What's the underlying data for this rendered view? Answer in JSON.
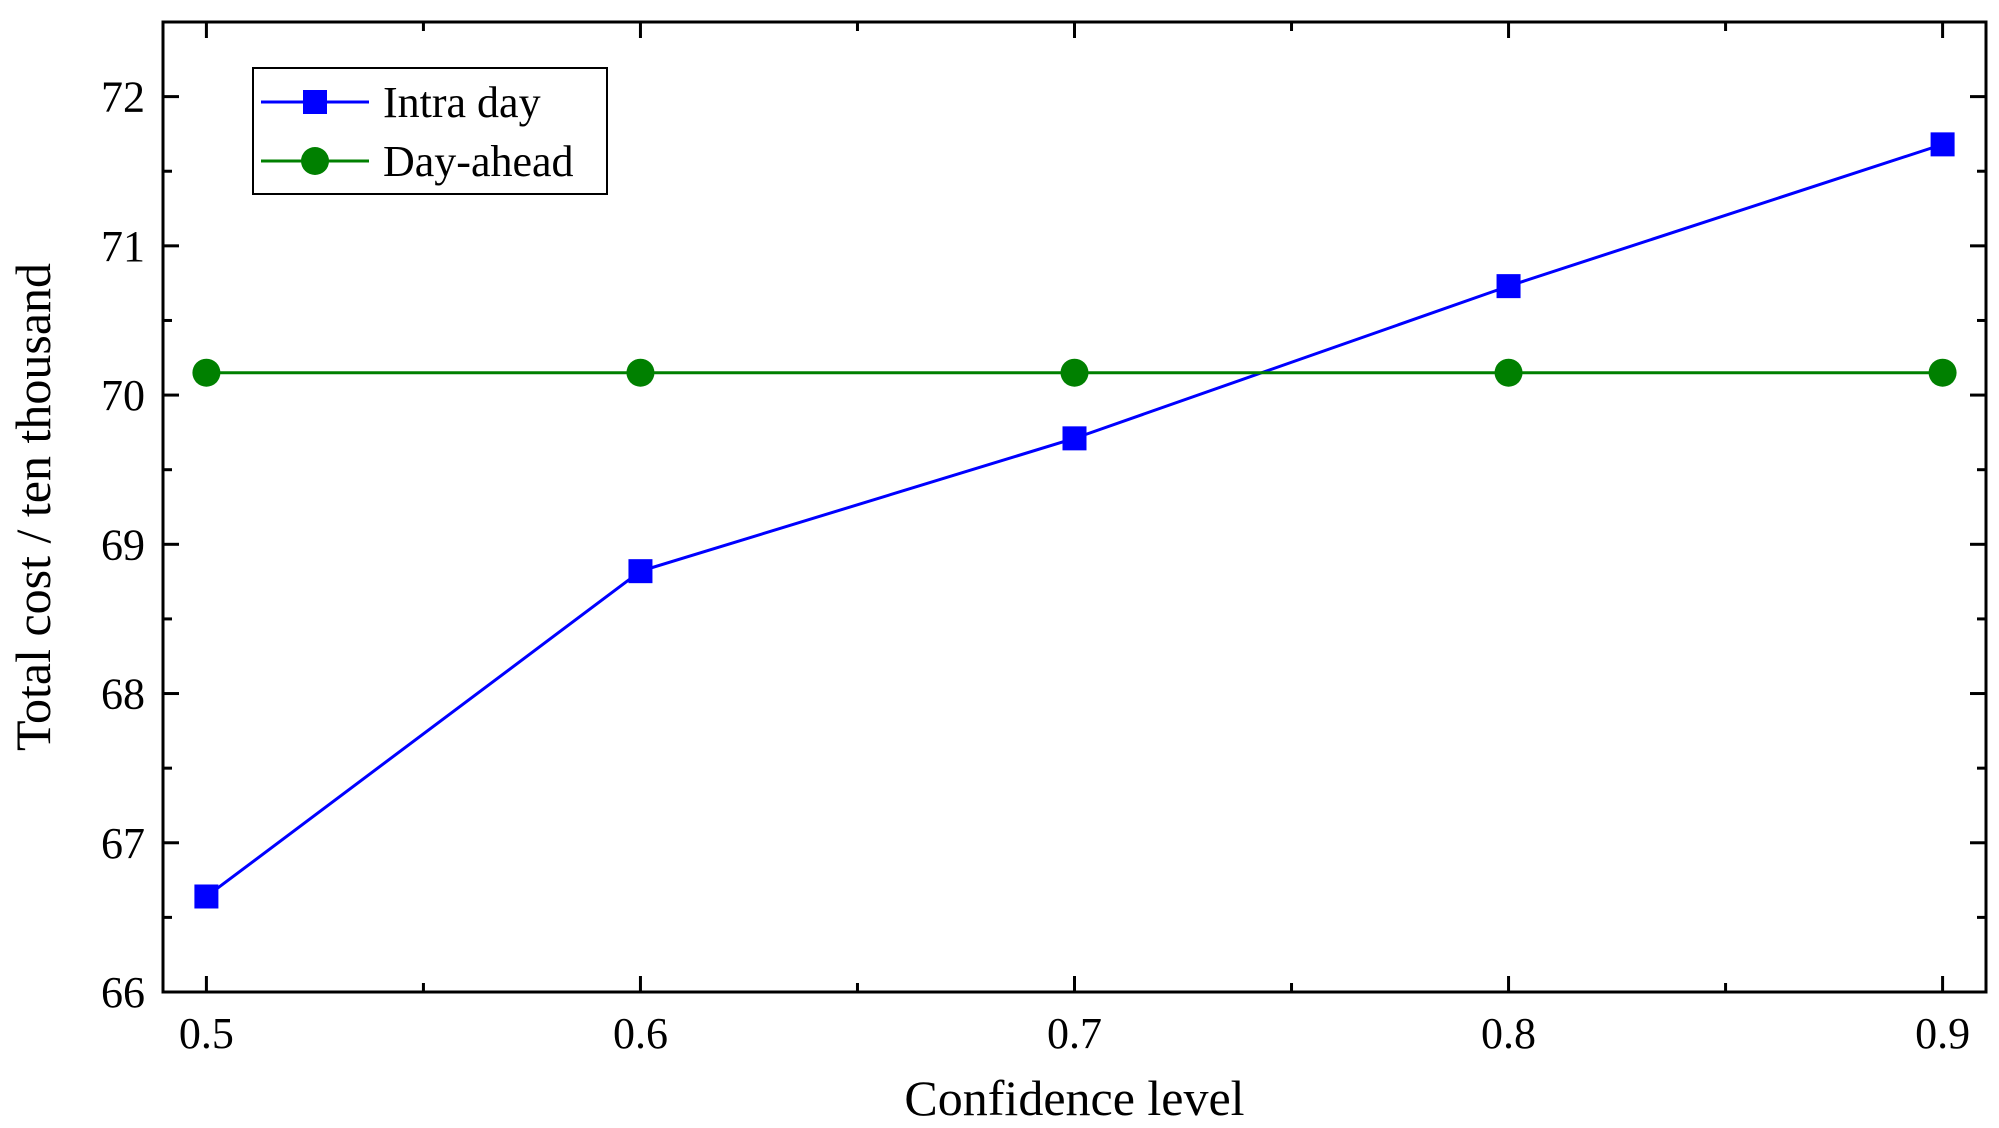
{
  "chart_data": {
    "type": "line",
    "title": "",
    "xlabel": "Confidence level",
    "ylabel": "Total cost / ten thousand",
    "x": [
      0.5,
      0.6,
      0.7,
      0.8,
      0.9
    ],
    "x_tick_labels": [
      "0.5",
      "0.6",
      "0.7",
      "0.8",
      "0.9"
    ],
    "y_tick_values": [
      66,
      67,
      68,
      69,
      70,
      71,
      72
    ],
    "y_tick_labels": [
      "66",
      "67",
      "68",
      "69",
      "70",
      "71",
      "72"
    ],
    "xlim": [
      0.49,
      0.91
    ],
    "ylim": [
      66,
      72.5
    ],
    "grid": false,
    "legend_position": "top-left",
    "series": [
      {
        "name": "Intra day",
        "color": "#0000ff",
        "marker": "square",
        "values": [
          66.64,
          68.82,
          69.71,
          70.73,
          71.68
        ]
      },
      {
        "name": "Day-ahead",
        "color": "#008000",
        "marker": "circle",
        "values": [
          70.15,
          70.15,
          70.15,
          70.15,
          70.15
        ]
      }
    ]
  }
}
